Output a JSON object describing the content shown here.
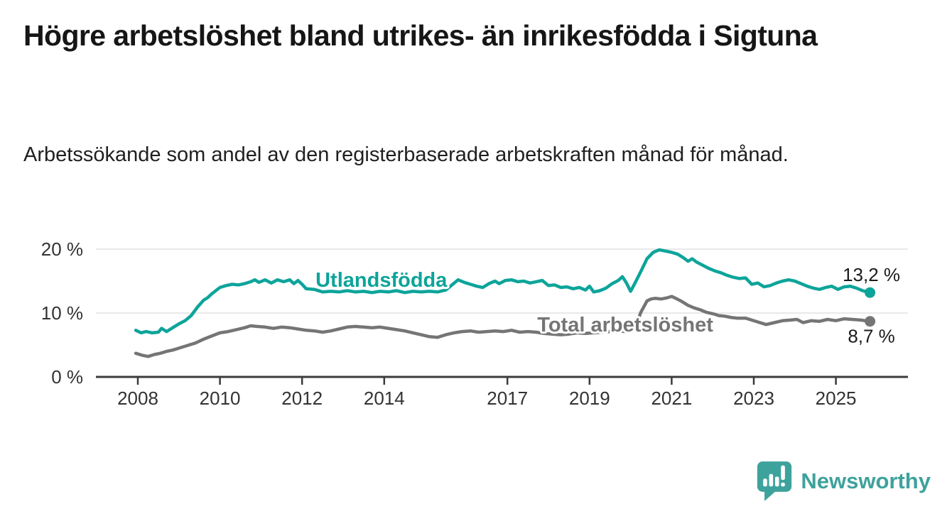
{
  "header": {
    "title": "Högre arbetslöshet bland utrikes- än inrikesfödda i Sigtuna",
    "subtitle": "Arbetssökande som andel av den registerbaserade arbetskraften månad för månad."
  },
  "footer": {
    "brand": "Newsworthy"
  },
  "colors": {
    "series_foreign_born": "#0da49a",
    "series_total": "#757575",
    "gridline": "#e2e2e2",
    "axis": "#3b3b3b",
    "tick_label": "#333333",
    "value_label": "#1a1a1a",
    "title": "#161616",
    "brand_teal": "#3ea29c",
    "background": "#ffffff"
  },
  "chart_data": {
    "type": "line",
    "title": "Högre arbetslöshet bland utrikes- än inrikesfödda i Sigtuna",
    "subtitle": "Arbetssökande som andel av den registerbaserade arbetskraften månad för månad.",
    "xlabel": "",
    "ylabel": "",
    "unit": "%",
    "grid": "horizontal",
    "legend": "inline-labels",
    "xlim": [
      2006.94,
      2026.84
    ],
    "ylim": [
      0,
      21.7
    ],
    "x_ticks": [
      2008,
      2010,
      2012,
      2014,
      2017,
      2019,
      2021,
      2023,
      2025
    ],
    "y_ticks": [
      {
        "value": 0,
        "label": "0 %"
      },
      {
        "value": 10,
        "label": "10 %"
      },
      {
        "value": 20,
        "label": "20 %"
      }
    ],
    "series": [
      {
        "name": "Utlandsfödda",
        "color": "#0da49a",
        "end_value": 13.2,
        "end_label": "13,2 %",
        "end_label_position": "above",
        "inline_label": {
          "x": 2013.93,
          "y": 15.1
        },
        "points": [
          [
            2007.95,
            7.3
          ],
          [
            2008.08,
            6.9
          ],
          [
            2008.2,
            7.1
          ],
          [
            2008.35,
            6.9
          ],
          [
            2008.5,
            7.0
          ],
          [
            2008.58,
            7.6
          ],
          [
            2008.7,
            7.1
          ],
          [
            2008.85,
            7.7
          ],
          [
            2009.0,
            8.3
          ],
          [
            2009.15,
            8.8
          ],
          [
            2009.3,
            9.6
          ],
          [
            2009.45,
            10.9
          ],
          [
            2009.6,
            12.0
          ],
          [
            2009.7,
            12.4
          ],
          [
            2009.8,
            13.0
          ],
          [
            2009.9,
            13.5
          ],
          [
            2010.0,
            14.0
          ],
          [
            2010.15,
            14.3
          ],
          [
            2010.3,
            14.5
          ],
          [
            2010.45,
            14.4
          ],
          [
            2010.6,
            14.6
          ],
          [
            2010.75,
            14.9
          ],
          [
            2010.85,
            15.2
          ],
          [
            2010.95,
            14.8
          ],
          [
            2011.1,
            15.2
          ],
          [
            2011.25,
            14.7
          ],
          [
            2011.4,
            15.2
          ],
          [
            2011.55,
            14.9
          ],
          [
            2011.7,
            15.2
          ],
          [
            2011.8,
            14.6
          ],
          [
            2011.9,
            15.1
          ],
          [
            2012.0,
            14.5
          ],
          [
            2012.1,
            13.8
          ],
          [
            2012.3,
            13.7
          ],
          [
            2012.5,
            13.3
          ],
          [
            2012.7,
            13.4
          ],
          [
            2012.9,
            13.3
          ],
          [
            2013.1,
            13.5
          ],
          [
            2013.3,
            13.3
          ],
          [
            2013.5,
            13.4
          ],
          [
            2013.7,
            13.2
          ],
          [
            2013.9,
            13.4
          ],
          [
            2014.1,
            13.3
          ],
          [
            2014.3,
            13.5
          ],
          [
            2014.5,
            13.2
          ],
          [
            2014.7,
            13.4
          ],
          [
            2014.9,
            13.3
          ],
          [
            2015.1,
            13.4
          ],
          [
            2015.3,
            13.3
          ],
          [
            2015.5,
            13.6
          ],
          [
            2015.65,
            14.4
          ],
          [
            2015.8,
            15.2
          ],
          [
            2015.95,
            14.8
          ],
          [
            2016.1,
            14.5
          ],
          [
            2016.25,
            14.2
          ],
          [
            2016.4,
            14.0
          ],
          [
            2016.55,
            14.6
          ],
          [
            2016.7,
            15.0
          ],
          [
            2016.8,
            14.6
          ],
          [
            2016.95,
            15.1
          ],
          [
            2017.1,
            15.2
          ],
          [
            2017.25,
            14.9
          ],
          [
            2017.4,
            15.0
          ],
          [
            2017.55,
            14.7
          ],
          [
            2017.7,
            14.9
          ],
          [
            2017.85,
            15.1
          ],
          [
            2018.0,
            14.3
          ],
          [
            2018.15,
            14.4
          ],
          [
            2018.3,
            14.0
          ],
          [
            2018.45,
            14.1
          ],
          [
            2018.6,
            13.8
          ],
          [
            2018.75,
            14.0
          ],
          [
            2018.9,
            13.6
          ],
          [
            2019.0,
            14.2
          ],
          [
            2019.1,
            13.3
          ],
          [
            2019.25,
            13.5
          ],
          [
            2019.4,
            13.9
          ],
          [
            2019.55,
            14.6
          ],
          [
            2019.7,
            15.1
          ],
          [
            2019.8,
            15.7
          ],
          [
            2019.9,
            14.7
          ],
          [
            2020.0,
            13.4
          ],
          [
            2020.1,
            14.6
          ],
          [
            2020.25,
            16.5
          ],
          [
            2020.4,
            18.5
          ],
          [
            2020.55,
            19.5
          ],
          [
            2020.7,
            19.9
          ],
          [
            2020.85,
            19.7
          ],
          [
            2021.0,
            19.5
          ],
          [
            2021.15,
            19.2
          ],
          [
            2021.3,
            18.6
          ],
          [
            2021.4,
            18.1
          ],
          [
            2021.5,
            18.5
          ],
          [
            2021.6,
            18.0
          ],
          [
            2021.75,
            17.5
          ],
          [
            2021.9,
            17.0
          ],
          [
            2022.05,
            16.6
          ],
          [
            2022.2,
            16.3
          ],
          [
            2022.35,
            15.9
          ],
          [
            2022.5,
            15.6
          ],
          [
            2022.65,
            15.4
          ],
          [
            2022.8,
            15.5
          ],
          [
            2022.95,
            14.5
          ],
          [
            2023.1,
            14.7
          ],
          [
            2023.25,
            14.1
          ],
          [
            2023.4,
            14.3
          ],
          [
            2023.55,
            14.7
          ],
          [
            2023.7,
            15.0
          ],
          [
            2023.85,
            15.2
          ],
          [
            2024.0,
            15.0
          ],
          [
            2024.15,
            14.6
          ],
          [
            2024.3,
            14.2
          ],
          [
            2024.45,
            13.9
          ],
          [
            2024.6,
            13.7
          ],
          [
            2024.75,
            14.0
          ],
          [
            2024.9,
            14.2
          ],
          [
            2025.05,
            13.7
          ],
          [
            2025.2,
            14.1
          ],
          [
            2025.35,
            14.2
          ],
          [
            2025.5,
            13.9
          ],
          [
            2025.65,
            13.5
          ],
          [
            2025.83,
            13.2
          ]
        ]
      },
      {
        "name": "Total arbetslöshet",
        "color": "#757575",
        "end_value": 8.7,
        "end_label": "8,7 %",
        "end_label_position": "below",
        "inline_label": {
          "x": 2019.87,
          "y": 8.1
        },
        "points": [
          [
            2007.95,
            3.7
          ],
          [
            2008.1,
            3.4
          ],
          [
            2008.25,
            3.2
          ],
          [
            2008.4,
            3.5
          ],
          [
            2008.55,
            3.7
          ],
          [
            2008.7,
            4.0
          ],
          [
            2008.85,
            4.2
          ],
          [
            2009.0,
            4.5
          ],
          [
            2009.2,
            4.9
          ],
          [
            2009.4,
            5.3
          ],
          [
            2009.6,
            5.9
          ],
          [
            2009.8,
            6.4
          ],
          [
            2010.0,
            6.9
          ],
          [
            2010.2,
            7.1
          ],
          [
            2010.4,
            7.4
          ],
          [
            2010.6,
            7.7
          ],
          [
            2010.75,
            8.0
          ],
          [
            2010.9,
            7.9
          ],
          [
            2011.1,
            7.8
          ],
          [
            2011.3,
            7.6
          ],
          [
            2011.5,
            7.8
          ],
          [
            2011.7,
            7.7
          ],
          [
            2011.9,
            7.5
          ],
          [
            2012.1,
            7.3
          ],
          [
            2012.3,
            7.2
          ],
          [
            2012.5,
            7.0
          ],
          [
            2012.7,
            7.2
          ],
          [
            2012.9,
            7.5
          ],
          [
            2013.1,
            7.8
          ],
          [
            2013.3,
            7.9
          ],
          [
            2013.5,
            7.8
          ],
          [
            2013.7,
            7.7
          ],
          [
            2013.9,
            7.8
          ],
          [
            2014.1,
            7.6
          ],
          [
            2014.3,
            7.4
          ],
          [
            2014.5,
            7.2
          ],
          [
            2014.7,
            6.9
          ],
          [
            2014.9,
            6.6
          ],
          [
            2015.1,
            6.3
          ],
          [
            2015.3,
            6.2
          ],
          [
            2015.5,
            6.6
          ],
          [
            2015.7,
            6.9
          ],
          [
            2015.9,
            7.1
          ],
          [
            2016.1,
            7.2
          ],
          [
            2016.3,
            7.0
          ],
          [
            2016.5,
            7.1
          ],
          [
            2016.7,
            7.2
          ],
          [
            2016.9,
            7.1
          ],
          [
            2017.1,
            7.3
          ],
          [
            2017.3,
            7.0
          ],
          [
            2017.5,
            7.1
          ],
          [
            2017.7,
            7.0
          ],
          [
            2017.9,
            6.8
          ],
          [
            2018.1,
            6.7
          ],
          [
            2018.3,
            6.6
          ],
          [
            2018.5,
            6.7
          ],
          [
            2018.7,
            6.9
          ],
          [
            2018.9,
            6.8
          ],
          [
            2019.1,
            6.9
          ],
          [
            2019.3,
            7.0
          ],
          [
            2019.5,
            7.1
          ],
          [
            2019.7,
            7.2
          ],
          [
            2019.9,
            7.1
          ],
          [
            2020.1,
            7.6
          ],
          [
            2020.25,
            10.1
          ],
          [
            2020.4,
            11.9
          ],
          [
            2020.5,
            12.2
          ],
          [
            2020.6,
            12.3
          ],
          [
            2020.75,
            12.2
          ],
          [
            2020.9,
            12.4
          ],
          [
            2021.0,
            12.6
          ],
          [
            2021.1,
            12.3
          ],
          [
            2021.25,
            11.8
          ],
          [
            2021.4,
            11.2
          ],
          [
            2021.55,
            10.8
          ],
          [
            2021.7,
            10.5
          ],
          [
            2021.85,
            10.1
          ],
          [
            2022.0,
            9.9
          ],
          [
            2022.15,
            9.6
          ],
          [
            2022.3,
            9.5
          ],
          [
            2022.45,
            9.3
          ],
          [
            2022.6,
            9.2
          ],
          [
            2022.8,
            9.2
          ],
          [
            2022.95,
            8.9
          ],
          [
            2023.1,
            8.6
          ],
          [
            2023.3,
            8.2
          ],
          [
            2023.5,
            8.5
          ],
          [
            2023.7,
            8.8
          ],
          [
            2023.9,
            8.9
          ],
          [
            2024.05,
            9.0
          ],
          [
            2024.2,
            8.5
          ],
          [
            2024.4,
            8.8
          ],
          [
            2024.6,
            8.7
          ],
          [
            2024.8,
            9.0
          ],
          [
            2025.0,
            8.8
          ],
          [
            2025.2,
            9.1
          ],
          [
            2025.4,
            9.0
          ],
          [
            2025.6,
            8.9
          ],
          [
            2025.83,
            8.7
          ]
        ]
      }
    ]
  }
}
